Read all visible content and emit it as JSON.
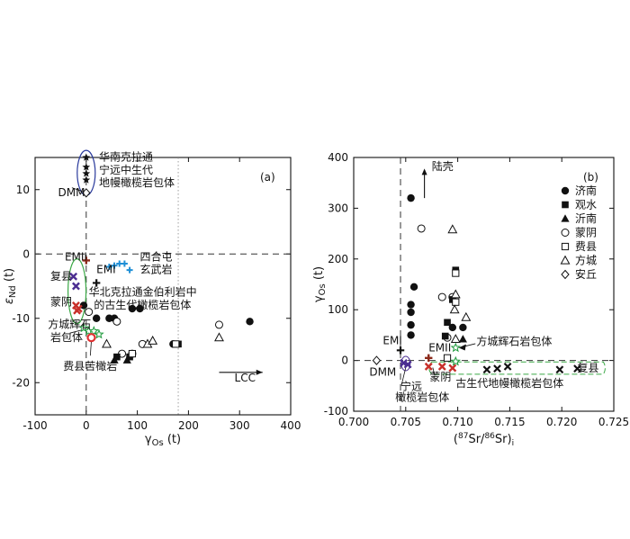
{
  "chart_data": [
    {
      "id": "a",
      "type": "scatter",
      "panel_label": "(a)",
      "xlabel": "γOs (t)",
      "ylabel": "εNd (t)",
      "xlim": [
        -100,
        400
      ],
      "ylim": [
        -25,
        15
      ],
      "xticks": [
        -100,
        0,
        100,
        200,
        300,
        400
      ],
      "yticks": [
        -20,
        -10,
        0,
        10
      ],
      "reference_lines": {
        "x_dashed": 0,
        "y_dashed": 0,
        "x_dotted": 180
      },
      "series": [
        {
          "marker": "filled-circle",
          "points": [
            [
              -5,
              -8
            ],
            [
              20,
              -10
            ],
            [
              45,
              -10
            ],
            [
              55,
              -10
            ],
            [
              90,
              -8.5
            ],
            [
              105,
              -8.5
            ],
            [
              170,
              -14
            ],
            [
              320,
              -10.5
            ]
          ]
        },
        {
          "marker": "open-circle",
          "points": [
            [
              5,
              -9
            ],
            [
              60,
              -10.5
            ],
            [
              70,
              -15.5
            ],
            [
              90,
              -15.5
            ],
            [
              110,
              -14
            ],
            [
              260,
              -11
            ]
          ]
        },
        {
          "marker": "filled-triangle",
          "points": [
            [
              55,
              -16.5
            ],
            [
              80,
              -16.5
            ]
          ]
        },
        {
          "marker": "open-triangle",
          "points": [
            [
              40,
              -14
            ],
            [
              120,
              -14
            ],
            [
              130,
              -13.5
            ],
            [
              260,
              -13
            ]
          ]
        },
        {
          "marker": "filled-square",
          "points": [
            [
              60,
              -16
            ],
            [
              85,
              -16
            ],
            [
              180,
              -14
            ]
          ]
        },
        {
          "marker": "open-square",
          "points": [
            [
              90,
              -15.5
            ],
            [
              175,
              -14
            ]
          ]
        },
        {
          "marker": "black-star",
          "points": [
            [
              0,
              15
            ],
            [
              0,
              13.5
            ],
            [
              0,
              12.5
            ],
            [
              0,
              11.5
            ]
          ]
        },
        {
          "marker": "diamond",
          "points": [
            [
              0,
              9.5
            ]
          ]
        },
        {
          "marker": "brown-cross",
          "points": [
            [
              0,
              -1
            ]
          ]
        },
        {
          "marker": "black-cross",
          "points": [
            [
              20,
              -4.5
            ]
          ]
        },
        {
          "marker": "blue-cross",
          "points": [
            [
              45,
              -2
            ],
            [
              55,
              -1.8
            ],
            [
              65,
              -1.5
            ],
            [
              75,
              -1.5
            ],
            [
              85,
              -2.5
            ]
          ]
        },
        {
          "marker": "purple-x",
          "points": [
            [
              -25,
              -3.5
            ],
            [
              -20,
              -5
            ]
          ]
        },
        {
          "marker": "red-x",
          "points": [
            [
              -20,
              -8
            ],
            [
              -18,
              -8.8
            ],
            [
              -15,
              -8.5
            ]
          ]
        },
        {
          "marker": "green-star",
          "points": [
            [
              -5,
              -11.5
            ],
            [
              5,
              -12
            ],
            [
              15,
              -12
            ],
            [
              25,
              -12.5
            ]
          ]
        },
        {
          "marker": "red-ring",
          "points": [
            [
              10,
              -13
            ]
          ]
        }
      ],
      "annotations": [
        {
          "text": "华南克拉通",
          "x": 25,
          "y": 14.5
        },
        {
          "text": "宁远中生代",
          "x": 25,
          "y": 12.5
        },
        {
          "text": "地幔橄榄岩包体",
          "x": 25,
          "y": 10.5
        },
        {
          "text": "DMM",
          "x": -55,
          "y": 9
        },
        {
          "text": "EMII",
          "x": -42,
          "y": -1
        },
        {
          "text": "EMI",
          "x": 20,
          "y": -3
        },
        {
          "text": "复县",
          "x": -70,
          "y": -4
        },
        {
          "text": "四合屯",
          "x": 105,
          "y": -1
        },
        {
          "text": "玄武岩",
          "x": 105,
          "y": -3
        },
        {
          "text": "华北克拉通金伯利岩中",
          "x": 5,
          "y": -6.5
        },
        {
          "text": "的古生代橄榄岩包体",
          "x": 15,
          "y": -8.5
        },
        {
          "text": "蒙阴",
          "x": -70,
          "y": -8
        },
        {
          "text": "方城辉石",
          "x": -75,
          "y": -11.5
        },
        {
          "text": "岩包体",
          "x": -70,
          "y": -13.5
        },
        {
          "text": "费县苦橄岩",
          "x": -45,
          "y": -18
        },
        {
          "text": "LCC",
          "x": 290,
          "y": -19.8
        }
      ]
    },
    {
      "id": "b",
      "type": "scatter",
      "panel_label": "(b)",
      "xlabel": "(87Sr/86Sr)i",
      "ylabel": "γOs (t)",
      "xlim": [
        0.7,
        0.725
      ],
      "ylim": [
        -100,
        400
      ],
      "xticks": [
        0.7,
        0.705,
        0.71,
        0.715,
        0.72,
        0.725
      ],
      "yticks": [
        -100,
        0,
        100,
        200,
        300,
        400
      ],
      "reference_lines": {
        "x_dashed": 0.7045,
        "y_dashed": 0
      },
      "legend": {
        "position": "top-right",
        "items": [
          {
            "marker": "filled-circle",
            "label": "济南"
          },
          {
            "marker": "filled-square",
            "label": "观水"
          },
          {
            "marker": "filled-triangle",
            "label": "沂南"
          },
          {
            "marker": "open-circle",
            "label": "蒙阴"
          },
          {
            "marker": "open-square",
            "label": "费县"
          },
          {
            "marker": "open-triangle",
            "label": "方城"
          },
          {
            "marker": "diamond",
            "label": "安丘"
          }
        ]
      },
      "series": [
        {
          "marker": "filled-circle",
          "points": [
            [
              0.7055,
              320
            ],
            [
              0.7055,
              110
            ],
            [
              0.7055,
              95
            ],
            [
              0.7055,
              70
            ],
            [
              0.7055,
              50
            ],
            [
              0.7058,
              145
            ],
            [
              0.7095,
              65
            ],
            [
              0.7105,
              65
            ]
          ]
        },
        {
          "marker": "open-circle",
          "points": [
            [
              0.7065,
              260
            ],
            [
              0.7085,
              125
            ],
            [
              0.7095,
              125
            ],
            [
              0.709,
              45
            ]
          ]
        },
        {
          "marker": "filled-square",
          "points": [
            [
              0.7098,
              178
            ],
            [
              0.7095,
              120
            ],
            [
              0.709,
              75
            ],
            [
              0.7088,
              48
            ]
          ]
        },
        {
          "marker": "open-square",
          "points": [
            [
              0.7098,
              172
            ],
            [
              0.7098,
              115
            ],
            [
              0.709,
              5
            ]
          ]
        },
        {
          "marker": "filled-triangle",
          "points": [
            [
              0.7108,
              85
            ],
            [
              0.7105,
              42
            ]
          ]
        },
        {
          "marker": "open-triangle",
          "points": [
            [
              0.7095,
              258
            ],
            [
              0.7098,
              130
            ],
            [
              0.7097,
              100
            ],
            [
              0.7108,
              85
            ],
            [
              0.7098,
              42
            ]
          ]
        },
        {
          "marker": "black-cross",
          "points": [
            [
              0.7045,
              20
            ]
          ]
        },
        {
          "marker": "brown-cross",
          "points": [
            [
              0.7072,
              5
            ]
          ]
        },
        {
          "marker": "diamond",
          "points": [
            [
              0.7022,
              0
            ]
          ]
        },
        {
          "marker": "purple-x",
          "points": [
            [
              0.7048,
              -5
            ],
            [
              0.7052,
              -8
            ]
          ]
        },
        {
          "marker": "red-x",
          "points": [
            [
              0.7072,
              -12
            ],
            [
              0.7085,
              -12
            ],
            [
              0.7095,
              -15
            ]
          ]
        },
        {
          "marker": "green-star",
          "points": [
            [
              0.7098,
              25
            ],
            [
              0.7098,
              -2
            ]
          ]
        },
        {
          "marker": "black-x",
          "points": [
            [
              0.7128,
              -18
            ],
            [
              0.7138,
              -16
            ],
            [
              0.7148,
              -12
            ],
            [
              0.7198,
              -18
            ],
            [
              0.7215,
              -16
            ]
          ]
        }
      ],
      "annotations": [
        {
          "text": "陆壳",
          "x": 0.7075,
          "y": 375
        },
        {
          "text": "EMI",
          "x": 0.7028,
          "y": 32
        },
        {
          "text": "EMII",
          "x": 0.7072,
          "y": 18
        },
        {
          "text": "方城辉石岩包体",
          "x": 0.7118,
          "y": 30
        },
        {
          "text": "DMM",
          "x": 0.7015,
          "y": -30
        },
        {
          "text": "宁远",
          "x": 0.7045,
          "y": -58
        },
        {
          "text": "橄榄岩包体",
          "x": 0.704,
          "y": -80
        },
        {
          "text": "蒙阴",
          "x": 0.7073,
          "y": -40
        },
        {
          "text": "复县",
          "x": 0.7215,
          "y": -22
        },
        {
          "text": "古生代地幔橄榄岩包体",
          "x": 0.7098,
          "y": -52
        }
      ]
    }
  ]
}
